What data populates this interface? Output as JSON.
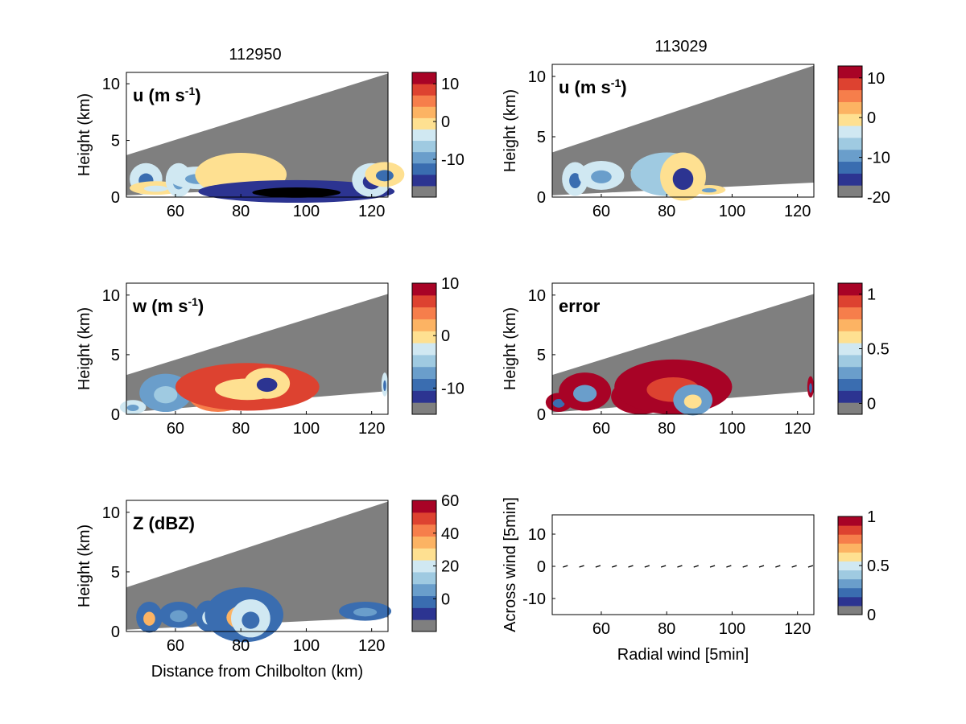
{
  "colormap": [
    "#7f7f7f",
    "#2c3491",
    "#3a6db0",
    "#6a9ecb",
    "#9fcae1",
    "#d0e8f2",
    "#fee091",
    "#fcb363",
    "#f67e4b",
    "#dd4230",
    "#a80326"
  ],
  "terrain_color": "#7f7f7f",
  "top_titles": [
    "112950",
    "113029"
  ],
  "chart_data": [
    {
      "type": "heatmap",
      "column_title": "112950",
      "label": "u (m s-1)",
      "label_main": "u (m s",
      "label_sup": "-1",
      "label_end": ")",
      "xlim": [
        45,
        125
      ],
      "ylim": [
        0,
        11
      ],
      "xticks": [
        "60",
        "80",
        "100",
        "120"
      ],
      "yticks": [
        "0",
        "5",
        "10"
      ],
      "ylabel": "Height (km)",
      "xlabel": "",
      "colorbar": {
        "min": -20,
        "max": 13,
        "ticks": [
          "10",
          "0",
          "-10"
        ]
      }
    },
    {
      "type": "heatmap",
      "column_title": "113029",
      "label": "u (m s-1)",
      "label_main": "u (m s",
      "label_sup": "-1",
      "label_end": ")",
      "xlim": [
        45,
        125
      ],
      "ylim": [
        0,
        11
      ],
      "xticks": [
        "60",
        "80",
        "100",
        "120"
      ],
      "yticks": [
        "0",
        "5",
        "10"
      ],
      "ylabel": "Height (km)",
      "xlabel": "",
      "colorbar": {
        "min": -20,
        "max": 13,
        "ticks": [
          "10",
          "0",
          "-10",
          "-20"
        ]
      }
    },
    {
      "type": "heatmap",
      "label": "w (m s-1)",
      "label_main": "w (m s",
      "label_sup": "-1",
      "label_end": ")",
      "xlim": [
        45,
        125
      ],
      "ylim": [
        0,
        11
      ],
      "xticks": [
        "60",
        "80",
        "100",
        "120"
      ],
      "yticks": [
        "0",
        "5",
        "10"
      ],
      "ylabel": "Height (km)",
      "xlabel": "",
      "colorbar": {
        "min": -15,
        "max": 10,
        "ticks": [
          "10",
          "0",
          "-10"
        ]
      }
    },
    {
      "type": "heatmap",
      "label": "error",
      "label_main": "error",
      "label_sup": "",
      "label_end": "",
      "xlim": [
        45,
        125
      ],
      "ylim": [
        0,
        11
      ],
      "xticks": [
        "60",
        "80",
        "100",
        "120"
      ],
      "yticks": [
        "0",
        "5",
        "10"
      ],
      "ylabel": "Height (km)",
      "xlabel": "",
      "colorbar": {
        "min": -0.1,
        "max": 1.1,
        "ticks": [
          "1",
          "0.5",
          "0"
        ]
      }
    },
    {
      "type": "heatmap",
      "label": "Z (dBZ)",
      "label_main": "Z (dBZ)",
      "label_sup": "",
      "label_end": "",
      "xlim": [
        45,
        125
      ],
      "ylim": [
        0,
        11
      ],
      "xticks": [
        "60",
        "80",
        "100",
        "120"
      ],
      "yticks": [
        "0",
        "5",
        "10"
      ],
      "ylabel": "Height (km)",
      "xlabel": "Distance from Chilbolton (km)",
      "colorbar": {
        "min": -20,
        "max": 60,
        "ticks": [
          "60",
          "40",
          "20",
          "0"
        ]
      }
    },
    {
      "type": "scatter",
      "label": "",
      "xlim": [
        45,
        125
      ],
      "ylim": [
        -15,
        16
      ],
      "xticks": [
        "60",
        "80",
        "100",
        "120"
      ],
      "yticks": [
        "10",
        "0",
        "-10"
      ],
      "ylabel": "Across wind [5min]",
      "xlabel": "Radial wind [5min]",
      "arrow_x": [
        49,
        54,
        59,
        64,
        69,
        74,
        79,
        84,
        89,
        94,
        99,
        104,
        109,
        114,
        119,
        124
      ],
      "colorbar": {
        "min": 0,
        "max": 1,
        "ticks": [
          "1",
          "0.5",
          "0"
        ]
      }
    }
  ]
}
